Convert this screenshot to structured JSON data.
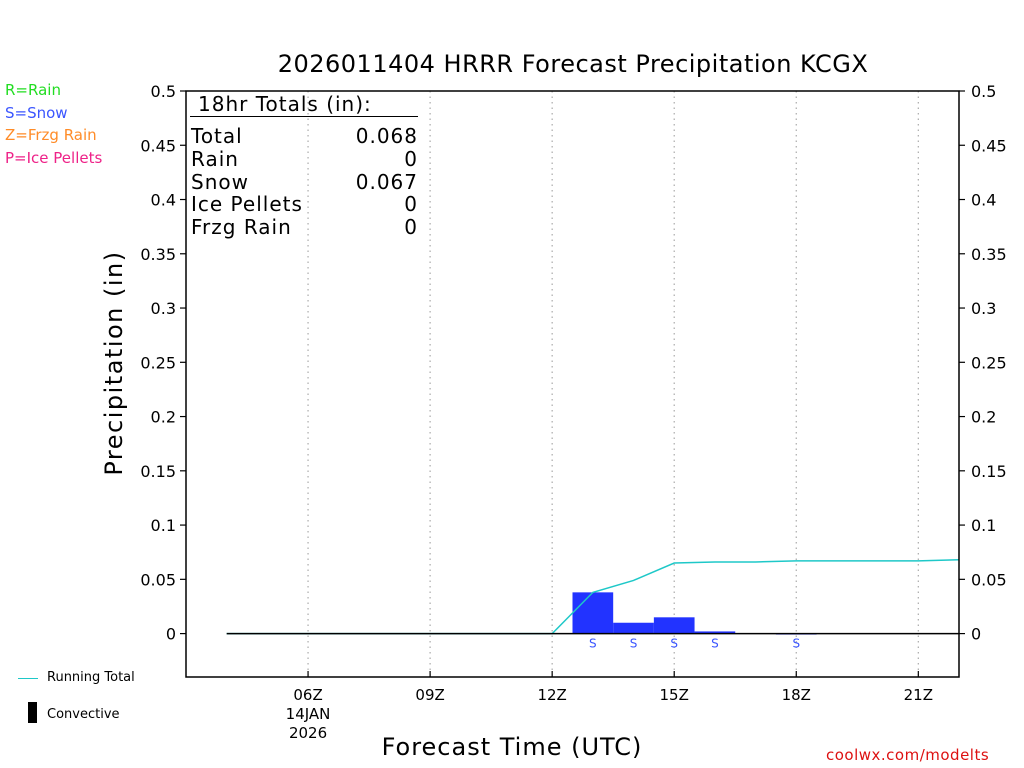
{
  "title": "2026011404 HRRR Forecast Precipitation KCGX",
  "legend": {
    "rain": "R=Rain",
    "snow": "S=Snow",
    "frzg_rain": "Z=Frzg Rain",
    "ice_pellets": "P=Ice Pellets",
    "running_total": "Running Total",
    "convective": "Convective"
  },
  "totals": {
    "header": "18hr Totals (in):",
    "rows": [
      {
        "label": "Total",
        "value": "0.068"
      },
      {
        "label": "Rain",
        "value": "0"
      },
      {
        "label": "Snow",
        "value": "0.067"
      },
      {
        "label": "Ice Pellets",
        "value": "0"
      },
      {
        "label": "Frzg Rain",
        "value": "0"
      }
    ]
  },
  "credit": "coolwx.com/modelts",
  "colors": {
    "snow_bar": "#2233ff",
    "running_total": "#1ec8c8",
    "rain": "#22dd22",
    "snow": "#3a55ff",
    "frzg_rain": "#ff8c28",
    "ice_pellets": "#ee2288",
    "credit": "#dd1111",
    "grid": "#aaaaaa"
  },
  "chart_data": {
    "type": "bar",
    "title": "2026011404 HRRR Forecast Precipitation KCGX",
    "xlabel": "Forecast Time (UTC)",
    "ylabel": "Precipitation (in)",
    "ylim": [
      -0.04,
      0.5
    ],
    "xlim": [
      -1.0,
      18.0
    ],
    "yticks": [
      0,
      0.05,
      0.1,
      0.15,
      0.2,
      0.25,
      0.3,
      0.35,
      0.4,
      0.45,
      0.5
    ],
    "ytick_labels": [
      "0",
      "0.05",
      "0.1",
      "0.15",
      "0.2",
      "0.25",
      "0.3",
      "0.35",
      "0.4",
      "0.45",
      "0.5"
    ],
    "xticks": [
      {
        "hour": 2,
        "lines": [
          "06Z",
          "14JAN",
          "2026"
        ]
      },
      {
        "hour": 5,
        "lines": [
          "09Z"
        ]
      },
      {
        "hour": 8,
        "lines": [
          "12Z"
        ]
      },
      {
        "hour": 11,
        "lines": [
          "15Z"
        ]
      },
      {
        "hour": 14,
        "lines": [
          "18Z"
        ]
      },
      {
        "hour": 17,
        "lines": [
          "21Z"
        ]
      }
    ],
    "hours": [
      0,
      1,
      2,
      3,
      4,
      5,
      6,
      7,
      8,
      9,
      10,
      11,
      12,
      13,
      14,
      15,
      16,
      17,
      18
    ],
    "series": [
      {
        "name": "Snow",
        "type": "bar",
        "values": [
          0,
          0,
          0,
          0,
          0,
          0,
          0,
          0,
          0,
          0.038,
          0.01,
          0.015,
          0.002,
          0,
          0.0005,
          0,
          0,
          0,
          0
        ]
      },
      {
        "name": "Convective",
        "type": "bar",
        "values": [
          0,
          0,
          0,
          0,
          0,
          0,
          0,
          0,
          0,
          0,
          0,
          0,
          0,
          0,
          0,
          0,
          0,
          0,
          0
        ]
      },
      {
        "name": "Running Total",
        "type": "line",
        "values": [
          0,
          0,
          0,
          0,
          0,
          0,
          0,
          0,
          0,
          0.038,
          0.049,
          0.065,
          0.066,
          0.066,
          0.067,
          0.067,
          0.067,
          0.067,
          0.068
        ]
      }
    ],
    "ptype_markers": [
      {
        "hour": 9,
        "label": "S"
      },
      {
        "hour": 10,
        "label": "S"
      },
      {
        "hour": 11,
        "label": "S"
      },
      {
        "hour": 12,
        "label": "S"
      },
      {
        "hour": 14,
        "label": "S"
      }
    ]
  }
}
